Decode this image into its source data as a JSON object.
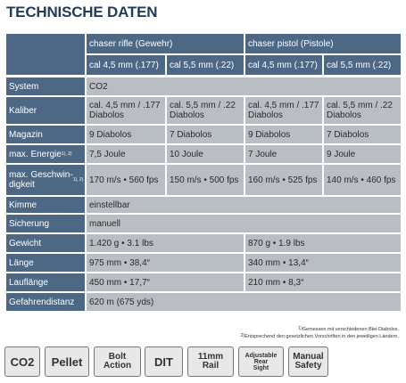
{
  "title": "TECHNISCHE DATEN",
  "table": {
    "header": {
      "models": [
        "chaser rifle (Gewehr)",
        "chaser pistol (Pistole)"
      ],
      "calibers": [
        "cal 4,5 mm (.177)",
        "cal 5,5 mm (.22)",
        "cal 4,5 mm (.177)",
        "cal 5,5 mm (.22)"
      ]
    },
    "rows": [
      {
        "label": "System",
        "cells": [
          "CO2"
        ]
      },
      {
        "label": "Kaliber",
        "cells": [
          "cal. 4,5 mm / .177\nDiabolos",
          "cal. 5,5 mm / .22\nDiabolos",
          "cal. 4,5 mm / .177\nDiabolos",
          "cal. 5,5 mm / .22\nDiabolos"
        ]
      },
      {
        "label": "Magazin",
        "cells": [
          "9 Diabolos",
          "7 Diabolos",
          "9 Diabolos",
          "7 Diabolos"
        ]
      },
      {
        "label": "max. Energie",
        "sup": "1), 2)",
        "cells": [
          "7,5 Joule",
          "10 Joule",
          "7 Joule",
          "9 Joule"
        ]
      },
      {
        "label": "max. Geschwin-\ndigkeit",
        "sup": "1), 2)",
        "cells": [
          "170 m/s • 560 fps",
          "150 m/s • 500 fps",
          "160 m/s • 525 fps",
          "140 m/s • 460 fps"
        ]
      },
      {
        "label": "Kimme",
        "cells": [
          "einstellbar"
        ]
      },
      {
        "label": "Sicherung",
        "cells": [
          "manuell"
        ]
      },
      {
        "label": "Gewicht",
        "cells": [
          "1.420 g • 3.1 lbs",
          "870 g • 1.9 lbs"
        ]
      },
      {
        "label": "Länge",
        "cells": [
          "975 mm • 38,4“",
          "340 mm • 13,4“"
        ]
      },
      {
        "label": "Lauflänge",
        "cells": [
          "450 mm • 17,7“",
          "210 mm • 8,3“"
        ]
      },
      {
        "label": "Gefahrendistanz",
        "cells": [
          "620 m (675 yds)"
        ]
      }
    ]
  },
  "footnotes": [
    {
      "mark": "1)",
      "text": "Gemessen mit verschiedenen Blei-Diabolos."
    },
    {
      "mark": "2)",
      "text": "Entsprechend den gesetzlichen Vorschriften in den jeweiligen Ländern."
    }
  ],
  "icons": [
    [
      "CO2"
    ],
    [
      "Pellet"
    ],
    [
      "Bolt",
      "Action"
    ],
    [
      "DIT"
    ],
    [
      "11mm",
      "Rail"
    ],
    [
      "Adjustable",
      "Rear",
      "Sight"
    ],
    [
      "Manual",
      "Safety"
    ]
  ]
}
